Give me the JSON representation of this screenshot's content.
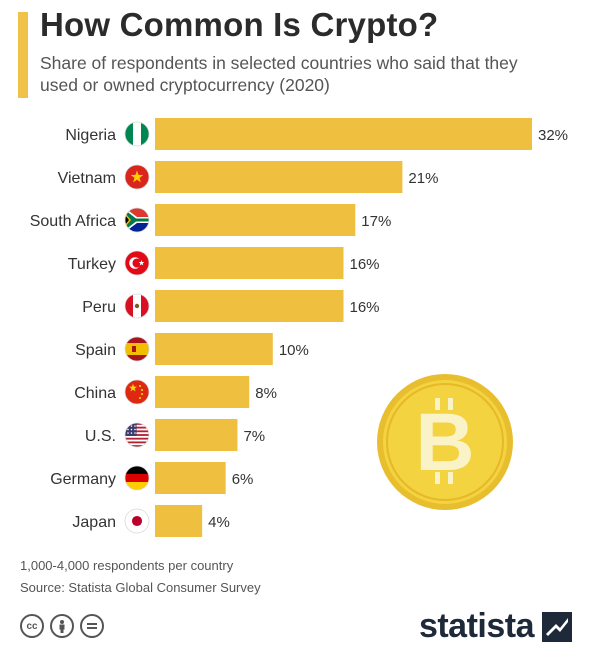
{
  "header": {
    "title": "How Common Is Crypto?",
    "subtitle": "Share of respondents in selected countries who said that they used or owned cryptocurrency (2020)"
  },
  "colors": {
    "bar": "#efc040",
    "accent": "#f0c24a",
    "coin": "#f3d33f",
    "brand": "#1e2a3a"
  },
  "chart_data": {
    "type": "bar",
    "orientation": "horizontal",
    "categories": [
      "Nigeria",
      "Vietnam",
      "South Africa",
      "Turkey",
      "Peru",
      "Spain",
      "China",
      "U.S.",
      "Germany",
      "Japan"
    ],
    "values": [
      32,
      21,
      17,
      16,
      16,
      10,
      8,
      7,
      6,
      4
    ],
    "value_labels": [
      "32%",
      "21%",
      "17%",
      "16%",
      "16%",
      "10%",
      "8%",
      "7%",
      "6%",
      "4%"
    ],
    "flags": [
      "nigeria-flag-icon",
      "vietnam-flag-icon",
      "south-africa-flag-icon",
      "turkey-flag-icon",
      "peru-flag-icon",
      "spain-flag-icon",
      "china-flag-icon",
      "us-flag-icon",
      "germany-flag-icon",
      "japan-flag-icon"
    ],
    "unit": "%",
    "xlim": [
      0,
      32
    ],
    "grid": false,
    "legend": "none",
    "decoration": "bitcoin-coin-icon"
  },
  "footer": {
    "note": "1,000-4,000 respondents per country",
    "source": "Source: Statista Global Consumer Survey",
    "license_icons": [
      "cc-icon",
      "by-icon",
      "nd-icon"
    ],
    "brand": "statista"
  }
}
